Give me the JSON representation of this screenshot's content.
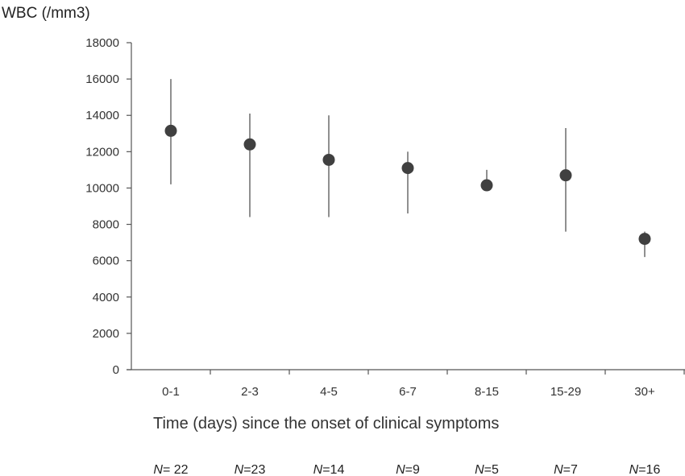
{
  "chart_data": {
    "type": "scatter",
    "title": "",
    "ylabel": "WBC (/mm3)",
    "xlabel": "Time (days) since the onset of clinical symptoms",
    "ylim": [
      0,
      18000
    ],
    "yticks": [
      0,
      2000,
      4000,
      6000,
      8000,
      10000,
      12000,
      14000,
      16000,
      18000
    ],
    "categories": [
      "0-1",
      "2-3",
      "4-5",
      "6-7",
      "8-15",
      "15-29",
      "30+"
    ],
    "values": [
      13150,
      12400,
      11550,
      11100,
      10150,
      10700,
      7200
    ],
    "error_low": [
      10200,
      8400,
      8400,
      8600,
      9900,
      7600,
      6200
    ],
    "error_high": [
      16000,
      14100,
      14000,
      12000,
      11000,
      13300,
      7600
    ],
    "n_labels": [
      {
        "prefix": "N",
        "text": "= 22"
      },
      {
        "prefix": "N",
        "text": "=23"
      },
      {
        "prefix": "N",
        "text": "=14"
      },
      {
        "prefix": "N",
        "text": "=9"
      },
      {
        "prefix": "N",
        "text": "=5"
      },
      {
        "prefix": "N",
        "text": "=7"
      },
      {
        "prefix": "N",
        "text": "=16"
      }
    ],
    "grid": false,
    "colors": {
      "marker": "#404040",
      "axis": "#555555",
      "errorbar": "#555555"
    }
  }
}
